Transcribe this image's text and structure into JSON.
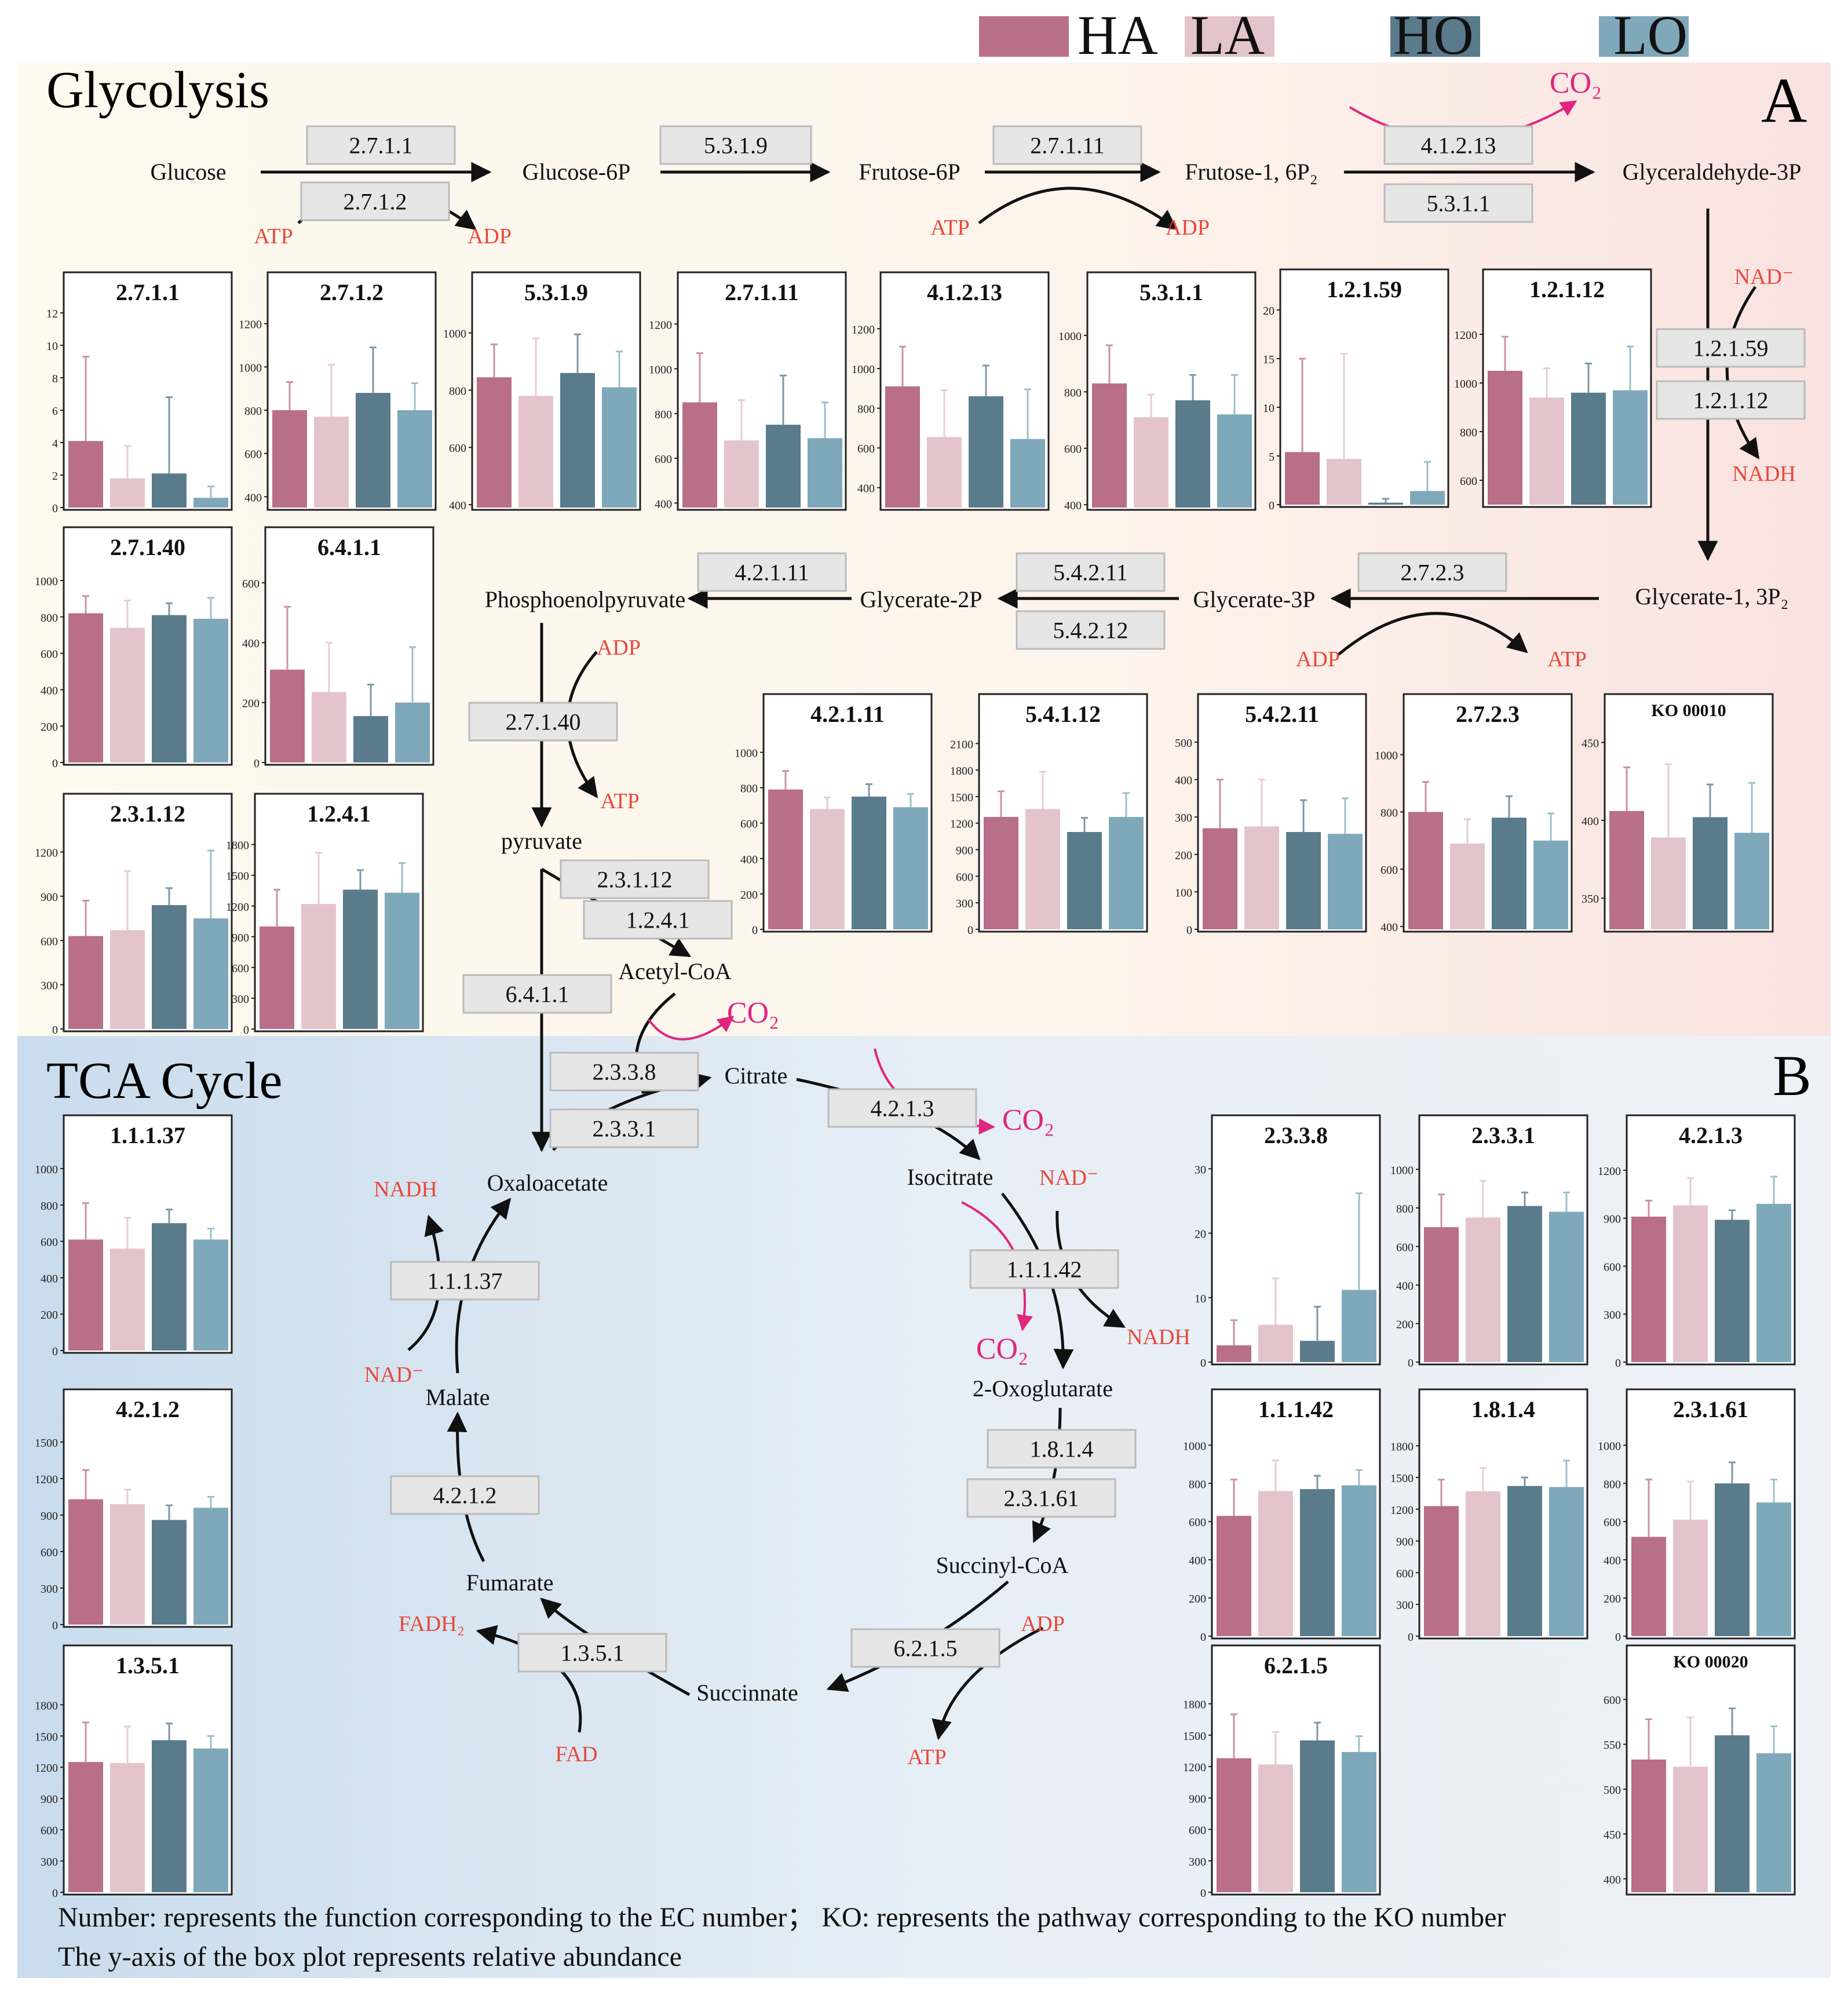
{
  "legend": [
    {
      "key": "HA",
      "color": "#b96f88"
    },
    {
      "key": "LA",
      "color": "#e4c4cc"
    },
    {
      "key": "HO",
      "color": "#5a7b8c"
    },
    {
      "key": "LO",
      "color": "#7fa9ba"
    }
  ],
  "colors": {
    "metabolite": "#111111",
    "cofactor": "#e8483a",
    "co2": "#e0267e",
    "arrow": "#111111",
    "ec_box_fill": "#e6e6e6",
    "ec_box_stroke": "#bbbbbb"
  },
  "sections": {
    "glycolysis": {
      "title": "Glycolysis",
      "label": "A"
    },
    "tca": {
      "title": "TCA Cycle",
      "label": "B"
    }
  },
  "footnotes": [
    "Number: represents the function corresponding to the EC number；  KO: represents the pathway corresponding to the KO number",
    "The y-axis of the box plot represents relative abundance"
  ],
  "metabolites": {
    "glucose": "Glucose",
    "glucose6p": "Glucose-6P",
    "fructose6p": "Frutose-6P",
    "fructose16p2": "Frutose-1, 6P₂",
    "gap": "Glyceraldehyde-3P",
    "bpg": "Glycerate-1, 3P₂",
    "pg3": "Glycerate-3P",
    "pg2": "Glycerate-2P",
    "pep": "Phosphoenolpyruvate",
    "pyruvate": "pyruvate",
    "acetylcoa": "Acetyl-CoA",
    "citrate": "Citrate",
    "isocitrate": "Isocitrate",
    "oxoglutarate": "2-Oxoglutarate",
    "succinylcoa": "Succinyl-CoA",
    "succinate": "Succinnate",
    "fumarate": "Fumarate",
    "malate": "Malate",
    "oxaloacetate": "Oxaloacetate"
  },
  "cofactors": {
    "atp1": "ATP",
    "adp1": "ADP",
    "atp2": "ATP",
    "adp2": "ADP",
    "co2_1": "CO₂",
    "nad1": "NAD⁻",
    "nadh1": "NADH",
    "adp3": "ADP",
    "atp3": "ATP",
    "adp4": "ADP",
    "atp4": "ATP",
    "co2_2": "CO₂",
    "co2_3": "CO₂",
    "nad2": "NAD⁻",
    "nadh2": "NADH",
    "co2_4": "CO₂",
    "adp5": "ADP",
    "atp5": "ATP",
    "fad": "FAD",
    "fadh2": "FADH₂",
    "nadh3": "NADH",
    "nad3": "NAD⁻"
  },
  "ec_labels": {
    "e27111": "2.7.1.1",
    "e27112": "2.7.1.2",
    "e5319": "5.3.1.9",
    "e27111b": "2.7.1.11",
    "e41213": "4.1.2.13",
    "e5311": "5.3.1.1",
    "e12159": "1.2.1.59",
    "e12112": "1.2.1.12",
    "e2723": "2.7.2.3",
    "e54211": "5.4.2.11",
    "e54212": "5.4.2.12",
    "e42111": "4.2.1.11",
    "e271040": "2.7.1.40",
    "e23112": "2.3.1.12",
    "e1241": "1.2.4.1",
    "e6411": "6.4.1.1",
    "e2338": "2.3.3.8",
    "e2331": "2.3.3.1",
    "e4213": "4.2.1.3",
    "e11142": "1.1.1.42",
    "e1814": "1.8.1.4",
    "e23161": "2.3.1.61",
    "e6215": "6.2.1.5",
    "e1351": "1.3.5.1",
    "e4212": "4.2.1.2",
    "e11137": "1.1.1.37"
  },
  "chart_data": [
    {
      "id": "c_2711",
      "type": "bar",
      "title": "2.7.1.1",
      "categories": [
        "HA",
        "LA",
        "HO",
        "LO"
      ],
      "values": [
        4.1,
        1.8,
        2.1,
        0.6
      ],
      "errors": [
        5.2,
        2.0,
        4.7,
        0.7
      ],
      "ylim": [
        0,
        12
      ],
      "yticks": [
        0,
        2,
        4,
        6,
        8,
        10,
        12
      ]
    },
    {
      "id": "c_2712",
      "type": "bar",
      "title": "2.7.1.2",
      "categories": [
        "HA",
        "LA",
        "HO",
        "LO"
      ],
      "values": [
        800,
        770,
        880,
        800
      ],
      "errors": [
        130,
        240,
        210,
        125
      ],
      "ylim": [
        350,
        1250
      ],
      "yticks": [
        400,
        600,
        800,
        1000,
        1200
      ]
    },
    {
      "id": "c_5319",
      "type": "bar",
      "title": "5.3.1.9",
      "categories": [
        "HA",
        "LA",
        "HO",
        "LO"
      ],
      "values": [
        845,
        780,
        860,
        810
      ],
      "errors": [
        115,
        200,
        135,
        125
      ],
      "ylim": [
        390,
        1070
      ],
      "yticks": [
        400,
        600,
        800,
        1000
      ]
    },
    {
      "id": "c_27111",
      "type": "bar",
      "title": "2.7.1.11",
      "categories": [
        "HA",
        "LA",
        "HO",
        "LO"
      ],
      "values": [
        850,
        680,
        750,
        690
      ],
      "errors": [
        220,
        180,
        220,
        160
      ],
      "ylim": [
        380,
        1250
      ],
      "yticks": [
        400,
        600,
        800,
        1000,
        1200
      ]
    },
    {
      "id": "c_41213",
      "type": "bar",
      "title": "4.1.2.13",
      "categories": [
        "HA",
        "LA",
        "HO",
        "LO"
      ],
      "values": [
        910,
        655,
        860,
        645
      ],
      "errors": [
        200,
        235,
        155,
        250
      ],
      "ylim": [
        300,
        1280
      ],
      "yticks": [
        400,
        600,
        800,
        1000,
        1200
      ]
    },
    {
      "id": "c_5311",
      "type": "bar",
      "title": "5.3.1.1",
      "categories": [
        "HA",
        "LA",
        "HO",
        "LO"
      ],
      "values": [
        830,
        710,
        770,
        720
      ],
      "errors": [
        135,
        80,
        90,
        140
      ],
      "ylim": [
        390,
        1080
      ],
      "yticks": [
        400,
        600,
        800,
        1000
      ]
    },
    {
      "id": "c_12159",
      "type": "bar",
      "title": "1.2.1.59",
      "categories": [
        "HA",
        "LA",
        "HO",
        "LO"
      ],
      "values": [
        5.4,
        4.7,
        0.2,
        1.4
      ],
      "errors": [
        9.6,
        10.8,
        0.4,
        3.0
      ],
      "ylim": [
        0,
        20
      ],
      "yticks": [
        0,
        5,
        10,
        15,
        20
      ]
    },
    {
      "id": "c_12112",
      "type": "bar",
      "title": "1.2.1.12",
      "categories": [
        "HA",
        "LA",
        "HO",
        "LO"
      ],
      "values": [
        1050,
        940,
        960,
        970
      ],
      "errors": [
        140,
        120,
        120,
        180
      ],
      "ylim": [
        500,
        1300
      ],
      "yticks": [
        600,
        800,
        1000,
        1200
      ]
    },
    {
      "id": "c_27140",
      "type": "bar",
      "title": "2.7.1.40",
      "categories": [
        "HA",
        "LA",
        "HO",
        "LO"
      ],
      "values": [
        820,
        740,
        810,
        790
      ],
      "errors": [
        95,
        150,
        65,
        115
      ],
      "ylim": [
        0,
        1070
      ],
      "yticks": [
        0,
        200,
        400,
        600,
        800,
        1000
      ]
    },
    {
      "id": "c_6411",
      "type": "bar",
      "title": "6.4.1.1",
      "categories": [
        "HA",
        "LA",
        "HO",
        "LO"
      ],
      "values": [
        310,
        235,
        155,
        200
      ],
      "errors": [
        210,
        165,
        105,
        185
      ],
      "ylim": [
        0,
        650
      ],
      "yticks": [
        0,
        200,
        400,
        600
      ]
    },
    {
      "id": "c_23112",
      "type": "bar",
      "title": "2.3.1.12",
      "categories": [
        "HA",
        "LA",
        "HO",
        "LO"
      ],
      "values": [
        630,
        670,
        840,
        750
      ],
      "errors": [
        240,
        400,
        115,
        460
      ],
      "ylim": [
        0,
        1320
      ],
      "yticks": [
        0,
        300,
        600,
        900,
        1200
      ]
    },
    {
      "id": "c_1241",
      "type": "bar",
      "title": "1.2.4.1",
      "categories": [
        "HA",
        "LA",
        "HO",
        "LO"
      ],
      "values": [
        1000,
        1220,
        1360,
        1330
      ],
      "errors": [
        360,
        500,
        190,
        290
      ],
      "ylim": [
        0,
        1900
      ],
      "yticks": [
        0,
        300,
        600,
        900,
        1200,
        1500,
        1800
      ]
    },
    {
      "id": "c_42111",
      "type": "bar",
      "title": "4.2.1.11",
      "categories": [
        "HA",
        "LA",
        "HO",
        "LO"
      ],
      "values": [
        790,
        680,
        750,
        690
      ],
      "errors": [
        105,
        65,
        70,
        75
      ],
      "ylim": [
        0,
        1100
      ],
      "yticks": [
        0,
        200,
        400,
        600,
        800,
        1000
      ]
    },
    {
      "id": "c_54112",
      "type": "bar",
      "title": "5.4.1.12",
      "categories": [
        "HA",
        "LA",
        "HO",
        "LO"
      ],
      "values": [
        1270,
        1360,
        1100,
        1270
      ],
      "errors": [
        290,
        420,
        160,
        270
      ],
      "ylim": [
        0,
        2200
      ],
      "yticks": [
        0,
        300,
        600,
        900,
        1200,
        1500,
        1800,
        2100
      ]
    },
    {
      "id": "c_54211",
      "type": "bar",
      "title": "5.4.2.11",
      "categories": [
        "HA",
        "LA",
        "HO",
        "LO"
      ],
      "values": [
        270,
        275,
        260,
        255
      ],
      "errors": [
        130,
        125,
        85,
        95
      ],
      "ylim": [
        0,
        520
      ],
      "yticks": [
        0,
        100,
        200,
        300,
        400,
        500
      ]
    },
    {
      "id": "c_2723",
      "type": "bar",
      "title": "2.7.2.3",
      "categories": [
        "HA",
        "LA",
        "HO",
        "LO"
      ],
      "values": [
        800,
        690,
        780,
        700
      ],
      "errors": [
        105,
        85,
        75,
        95
      ],
      "ylim": [
        390,
        1070
      ],
      "yticks": [
        400,
        600,
        800,
        1000
      ]
    },
    {
      "id": "c_ko00010",
      "type": "bar",
      "title": "KO 00010",
      "categories": [
        "HA",
        "LA",
        "HO",
        "LO"
      ],
      "values": [
        406,
        389,
        402,
        392
      ],
      "errors": [
        28,
        47,
        21,
        32
      ],
      "ylim": [
        330,
        455
      ],
      "yticks": [
        350,
        400,
        450
      ]
    },
    {
      "id": "c_11137",
      "type": "bar",
      "title": "1.1.1.37",
      "categories": [
        "HA",
        "LA",
        "HO",
        "LO"
      ],
      "values": [
        610,
        560,
        700,
        610
      ],
      "errors": [
        200,
        170,
        75,
        60
      ],
      "ylim": [
        0,
        1070
      ],
      "yticks": [
        0,
        200,
        400,
        600,
        800,
        1000
      ]
    },
    {
      "id": "c_4212",
      "type": "bar",
      "title": "4.2.1.2",
      "categories": [
        "HA",
        "LA",
        "HO",
        "LO"
      ],
      "values": [
        1030,
        990,
        860,
        960
      ],
      "errors": [
        240,
        120,
        120,
        90
      ],
      "ylim": [
        0,
        1600
      ],
      "yticks": [
        0,
        300,
        600,
        900,
        1200,
        1500
      ]
    },
    {
      "id": "c_1351",
      "type": "bar",
      "title": "1.3.5.1",
      "categories": [
        "HA",
        "LA",
        "HO",
        "LO"
      ],
      "values": [
        1250,
        1240,
        1460,
        1380
      ],
      "errors": [
        380,
        350,
        160,
        120
      ],
      "ylim": [
        0,
        1980
      ],
      "yticks": [
        0,
        300,
        600,
        900,
        1200,
        1500,
        1800
      ]
    },
    {
      "id": "c_2338",
      "type": "bar",
      "title": "2.3.3.8",
      "categories": [
        "HA",
        "LA",
        "HO",
        "LO"
      ],
      "values": [
        2.6,
        5.8,
        3.3,
        11.2
      ],
      "errors": [
        3.9,
        7.2,
        5.3,
        15.0
      ],
      "ylim": [
        0,
        32
      ],
      "yticks": [
        0,
        10,
        20,
        30
      ]
    },
    {
      "id": "c_2331",
      "type": "bar",
      "title": "2.3.3.1",
      "categories": [
        "HA",
        "LA",
        "HO",
        "LO"
      ],
      "values": [
        700,
        750,
        810,
        780
      ],
      "errors": [
        170,
        190,
        70,
        100
      ],
      "ylim": [
        0,
        1070
      ],
      "yticks": [
        0,
        200,
        400,
        600,
        800,
        1000
      ]
    },
    {
      "id": "c_4213",
      "type": "bar",
      "title": "4.2.1.3",
      "categories": [
        "HA",
        "LA",
        "HO",
        "LO"
      ],
      "values": [
        910,
        980,
        890,
        990
      ],
      "errors": [
        100,
        170,
        60,
        170
      ],
      "ylim": [
        0,
        1290
      ],
      "yticks": [
        0,
        300,
        600,
        900,
        1200
      ]
    },
    {
      "id": "c_11142",
      "type": "bar",
      "title": "1.1.1.42",
      "categories": [
        "HA",
        "LA",
        "HO",
        "LO"
      ],
      "values": [
        630,
        760,
        770,
        790
      ],
      "errors": [
        190,
        160,
        70,
        80
      ],
      "ylim": [
        0,
        1080
      ],
      "yticks": [
        0,
        200,
        400,
        600,
        800,
        1000
      ]
    },
    {
      "id": "c_1814",
      "type": "bar",
      "title": "1.8.1.4",
      "categories": [
        "HA",
        "LA",
        "HO",
        "LO"
      ],
      "values": [
        1230,
        1370,
        1420,
        1410
      ],
      "errors": [
        250,
        220,
        80,
        250
      ],
      "ylim": [
        0,
        1950
      ],
      "yticks": [
        0,
        300,
        600,
        900,
        1200,
        1500,
        1800
      ]
    },
    {
      "id": "c_23161",
      "type": "bar",
      "title": "2.3.1.61",
      "categories": [
        "HA",
        "LA",
        "HO",
        "LO"
      ],
      "values": [
        520,
        610,
        800,
        700
      ],
      "errors": [
        300,
        200,
        110,
        120
      ],
      "ylim": [
        0,
        1080
      ],
      "yticks": [
        0,
        200,
        400,
        600,
        800,
        1000
      ]
    },
    {
      "id": "c_6215",
      "type": "bar",
      "title": "6.2.1.5",
      "categories": [
        "HA",
        "LA",
        "HO",
        "LO"
      ],
      "values": [
        1280,
        1220,
        1450,
        1340
      ],
      "errors": [
        420,
        310,
        170,
        150
      ],
      "ylim": [
        0,
        1970
      ],
      "yticks": [
        0,
        300,
        600,
        900,
        1200,
        1500,
        1800
      ]
    },
    {
      "id": "c_ko00020",
      "type": "bar",
      "title": "KO 00020",
      "categories": [
        "HA",
        "LA",
        "HO",
        "LO"
      ],
      "values": [
        533,
        525,
        560,
        540
      ],
      "errors": [
        45,
        55,
        30,
        30
      ],
      "ylim": [
        385,
        615
      ],
      "yticks": [
        400,
        450,
        500,
        550,
        600
      ]
    }
  ]
}
